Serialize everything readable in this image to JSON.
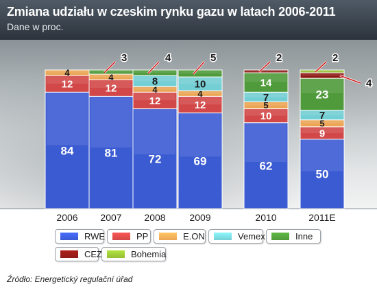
{
  "header": {
    "title": "Zmiana udziału w czeskim rynku gazu w latach 2006-2011",
    "subtitle": "Dane w proc."
  },
  "chart_data": {
    "type": "bar",
    "stacked": true,
    "categories": [
      "2006",
      "2007",
      "2008",
      "2009",
      "2010",
      "2011E"
    ],
    "ylim": [
      0,
      100
    ],
    "grid": false,
    "series": [
      {
        "name": "RWE",
        "color": "#3b5bd3",
        "values": [
          84,
          81,
          72,
          69,
          62,
          50
        ]
      },
      {
        "name": "PP",
        "color": "#d24848",
        "values": [
          12,
          12,
          12,
          12,
          10,
          9
        ]
      },
      {
        "name": "E.ON",
        "color": "#eba555",
        "values": [
          4,
          4,
          4,
          4,
          5,
          5
        ]
      },
      {
        "name": "Vemex",
        "color": "#74cfd4",
        "values": [
          0,
          0,
          8,
          10,
          7,
          7
        ]
      },
      {
        "name": "Inne",
        "color": "#4f9a3a",
        "values": [
          0,
          3,
          4,
          5,
          14,
          23
        ]
      },
      {
        "name": "CEZ",
        "color": "#8f1b17",
        "values": [
          0,
          0,
          0,
          0,
          2,
          4
        ]
      },
      {
        "name": "Bohemia",
        "color": "#94be35",
        "values": [
          0,
          0,
          0,
          0,
          0,
          2
        ]
      }
    ],
    "callouts": [
      {
        "category": "2007",
        "series": "Inne",
        "text": "3",
        "side": "right"
      },
      {
        "category": "2008",
        "series": "Inne",
        "text": "4",
        "side": "right"
      },
      {
        "category": "2009",
        "series": "Inne",
        "text": "5",
        "side": "right"
      },
      {
        "category": "2010",
        "series": "CEZ",
        "text": "2",
        "side": "right"
      },
      {
        "category": "2011E",
        "series": "Bohemia",
        "text": "2",
        "side": "right"
      },
      {
        "category": "2011E",
        "series": "CEZ",
        "text": "4",
        "side": "far-right"
      }
    ],
    "legend_position": "bottom"
  },
  "footer": {
    "source": "Źródło: Energetický regulační úřad"
  }
}
